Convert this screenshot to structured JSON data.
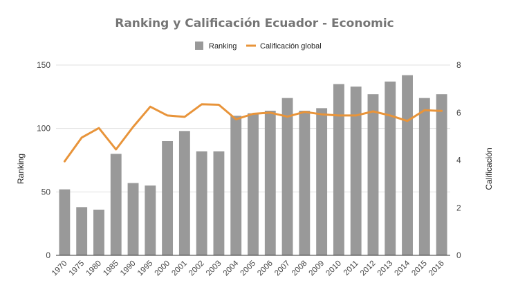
{
  "chart_data": {
    "type": "bar",
    "title": "Ranking y Calificación Ecuador - Economic",
    "categories": [
      "1970",
      "1975",
      "1980",
      "1985",
      "1990",
      "1995",
      "2000",
      "2001",
      "2002",
      "2003",
      "2004",
      "2005",
      "2006",
      "2007",
      "2008",
      "2009",
      "2010",
      "2011",
      "2012",
      "2013",
      "2014",
      "2015",
      "2016"
    ],
    "series": [
      {
        "name": "Ranking",
        "type": "bar",
        "axis": "left",
        "color": "#999999",
        "values": [
          52,
          38,
          36,
          80,
          57,
          55,
          90,
          98,
          82,
          82,
          110,
          112,
          114,
          124,
          114,
          116,
          135,
          133,
          127,
          137,
          142,
          124,
          127
        ]
      },
      {
        "name": "Calificación global",
        "type": "line",
        "axis": "right",
        "color": "#e8943a",
        "values": [
          3.95,
          4.95,
          5.35,
          4.45,
          5.4,
          6.25,
          5.88,
          5.82,
          6.35,
          6.33,
          5.72,
          5.95,
          6.0,
          5.83,
          6.03,
          5.93,
          5.88,
          5.88,
          6.05,
          5.88,
          5.65,
          6.1,
          6.07
        ]
      }
    ],
    "ylabel": "Ranking",
    "y2label": "Calificación",
    "ylim": [
      0,
      150
    ],
    "yticks": [
      0,
      50,
      100,
      150
    ],
    "y2lim": [
      0,
      8
    ],
    "y2ticks": [
      0,
      2,
      4,
      6,
      8
    ],
    "grid": true,
    "legend": "top-center"
  }
}
